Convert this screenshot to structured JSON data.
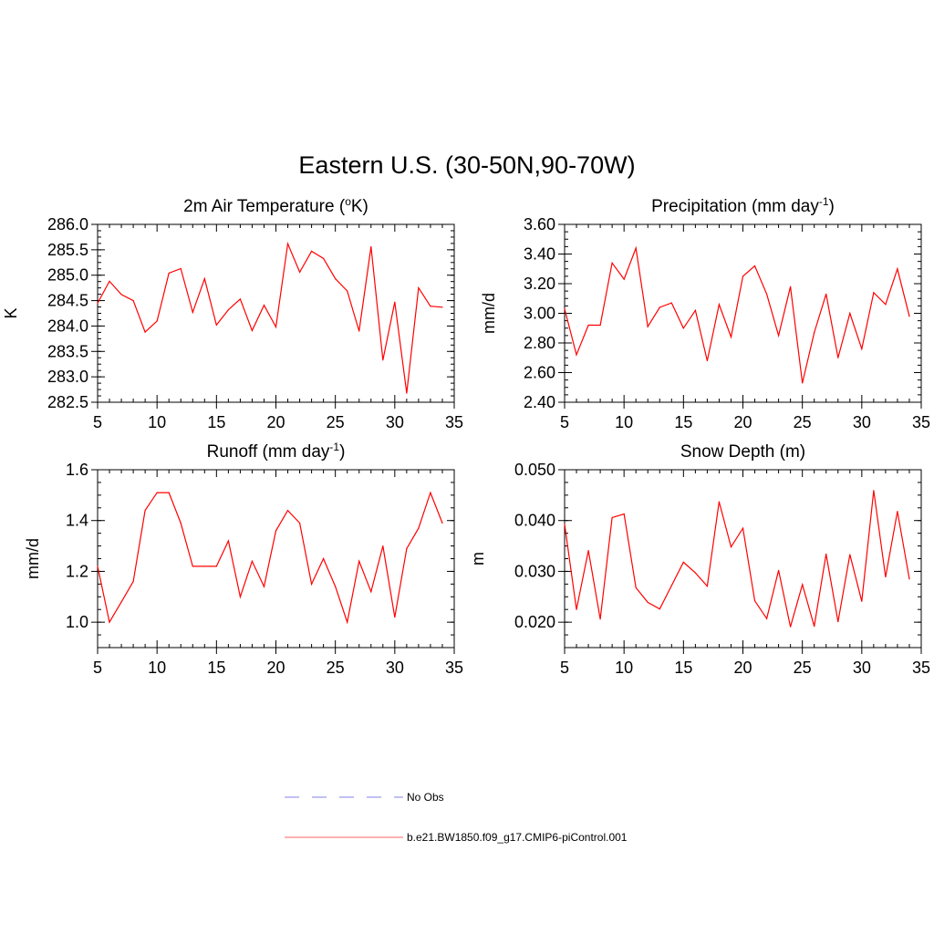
{
  "figure": {
    "title": "Eastern U.S. (30-50N,90-70W)",
    "line_color": "#ff0000",
    "obs_color": "#9a9aee"
  },
  "legend": {
    "obs_label": "No Obs",
    "model_label": "b.e21.BW1850.f09_g17.CMIP6-piControl.001"
  },
  "chart_data": [
    {
      "type": "line",
      "id": "temp",
      "title_main": "2m Air Temperature (",
      "title_sup": "o",
      "title_tail": "K)",
      "ylabel": "K",
      "xlabel": "",
      "xlim": [
        5,
        35
      ],
      "ylim": [
        282.5,
        286.0
      ],
      "xticks": [
        "5",
        "10",
        "15",
        "20",
        "25",
        "30",
        "35"
      ],
      "yticks": [
        "282.5",
        "283.0",
        "283.5",
        "284.0",
        "284.5",
        "285.0",
        "285.5",
        "286.0"
      ],
      "x": [
        5,
        6,
        7,
        8,
        9,
        10,
        11,
        12,
        13,
        14,
        15,
        16,
        17,
        18,
        19,
        20,
        21,
        22,
        23,
        24,
        25,
        26,
        27,
        28,
        29,
        30,
        31,
        32,
        33,
        34
      ],
      "series": [
        {
          "name": "b.e21.BW1850.f09_g17.CMIP6-piControl.001",
          "values": [
            284.45,
            284.88,
            284.62,
            284.5,
            283.88,
            284.1,
            285.04,
            285.13,
            284.27,
            284.93,
            284.02,
            284.32,
            284.53,
            283.91,
            284.41,
            283.98,
            285.62,
            285.06,
            285.47,
            285.33,
            284.93,
            284.69,
            283.9,
            285.56,
            283.33,
            284.47,
            282.68,
            284.75,
            284.39,
            284.37
          ]
        }
      ]
    },
    {
      "type": "line",
      "id": "precip",
      "title_main": "Precipitation (mm day",
      "title_sup": "-1",
      "title_tail": ")",
      "ylabel": "mm/d",
      "xlabel": "",
      "xlim": [
        5,
        35
      ],
      "ylim": [
        2.4,
        3.6
      ],
      "xticks": [
        "5",
        "10",
        "15",
        "20",
        "25",
        "30",
        "35"
      ],
      "yticks": [
        "2.40",
        "2.60",
        "2.80",
        "3.00",
        "3.20",
        "3.40",
        "3.60"
      ],
      "x": [
        5,
        6,
        7,
        8,
        9,
        10,
        11,
        12,
        13,
        14,
        15,
        16,
        17,
        18,
        19,
        20,
        21,
        22,
        23,
        24,
        25,
        26,
        27,
        28,
        29,
        30,
        31,
        32,
        33,
        34
      ],
      "series": [
        {
          "name": "b.e21.BW1850.f09_g17.CMIP6-piControl.001",
          "values": [
            3.03,
            2.72,
            2.92,
            2.92,
            3.34,
            3.23,
            3.44,
            2.91,
            3.04,
            3.07,
            2.9,
            3.02,
            2.68,
            3.06,
            2.84,
            3.25,
            3.32,
            3.13,
            2.85,
            3.18,
            2.53,
            2.87,
            3.13,
            2.7,
            3.0,
            2.76,
            3.14,
            3.06,
            3.3,
            2.98
          ]
        }
      ]
    },
    {
      "type": "line",
      "id": "runoff",
      "title_main": "Runoff (mm day",
      "title_sup": "-1",
      "title_tail": ")",
      "ylabel": "mm/d",
      "xlabel": "",
      "xlim": [
        5,
        35
      ],
      "ylim": [
        0.9,
        1.6
      ],
      "xticks": [
        "5",
        "10",
        "15",
        "20",
        "25",
        "30",
        "35"
      ],
      "yticks": [
        "1.0",
        "1.2",
        "1.4",
        "1.6"
      ],
      "ytick_values": [
        1.0,
        1.2,
        1.4,
        1.6
      ],
      "x": [
        5,
        6,
        7,
        8,
        9,
        10,
        11,
        12,
        13,
        14,
        15,
        16,
        17,
        18,
        19,
        20,
        21,
        22,
        23,
        24,
        25,
        26,
        27,
        28,
        29,
        30,
        31,
        32,
        33,
        34
      ],
      "series": [
        {
          "name": "b.e21.BW1850.f09_g17.CMIP6-piControl.001",
          "values": [
            1.22,
            1.0,
            1.08,
            1.16,
            1.44,
            1.51,
            1.51,
            1.39,
            1.22,
            1.22,
            1.22,
            1.32,
            1.1,
            1.24,
            1.14,
            1.36,
            1.44,
            1.39,
            1.15,
            1.25,
            1.14,
            1.0,
            1.24,
            1.12,
            1.3,
            1.02,
            1.29,
            1.37,
            1.51,
            1.39
          ]
        }
      ]
    },
    {
      "type": "line",
      "id": "snow",
      "title_main": "Snow Depth (m)",
      "title_sup": "",
      "title_tail": "",
      "ylabel": "m",
      "xlabel": "",
      "xlim": [
        5,
        35
      ],
      "ylim": [
        0.015,
        0.05
      ],
      "xticks": [
        "5",
        "10",
        "15",
        "20",
        "25",
        "30",
        "35"
      ],
      "yticks": [
        "0.020",
        "0.030",
        "0.040",
        "0.050"
      ],
      "ytick_values": [
        0.02,
        0.03,
        0.04,
        0.05
      ],
      "x": [
        5,
        6,
        7,
        8,
        9,
        10,
        11,
        12,
        13,
        14,
        15,
        16,
        17,
        18,
        19,
        20,
        21,
        22,
        23,
        24,
        25,
        26,
        27,
        28,
        29,
        30,
        31,
        32,
        33,
        34
      ],
      "series": [
        {
          "name": "b.e21.BW1850.f09_g17.CMIP6-piControl.001",
          "values": [
            0.0393,
            0.0225,
            0.0341,
            0.0206,
            0.0406,
            0.0413,
            0.0268,
            0.0239,
            0.0226,
            0.0272,
            0.0318,
            0.0297,
            0.0271,
            0.0437,
            0.0348,
            0.0385,
            0.0242,
            0.0207,
            0.0302,
            0.0191,
            0.0274,
            0.0192,
            0.0334,
            0.0201,
            0.0333,
            0.0241,
            0.0459,
            0.0289,
            0.0418,
            0.0285
          ]
        }
      ]
    }
  ]
}
